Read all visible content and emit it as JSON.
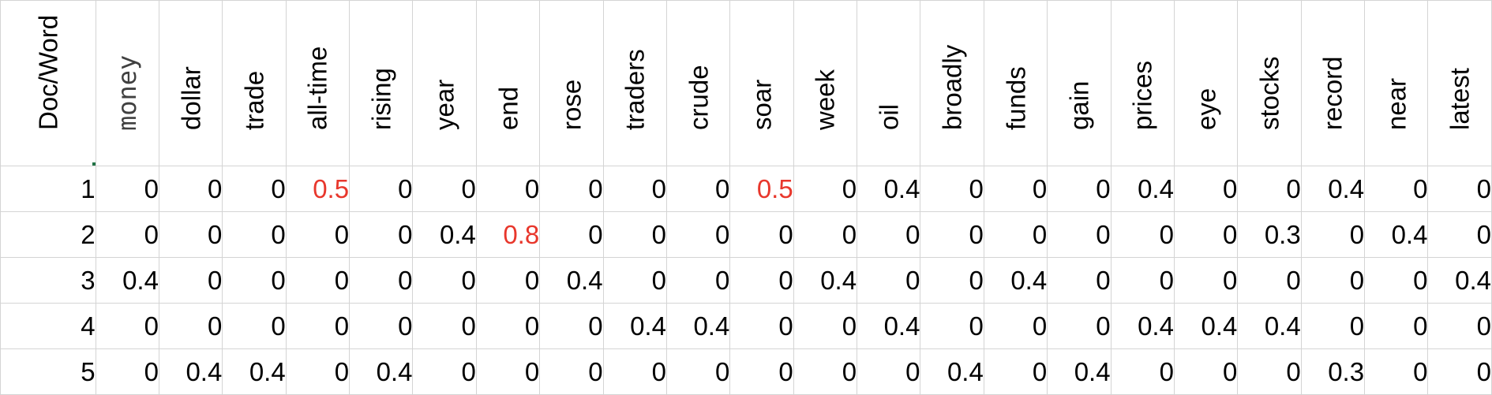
{
  "corner_label": "Doc/Word",
  "words": [
    "money",
    "dollar",
    "trade",
    "all-time",
    "rising",
    "year",
    "end",
    "rose",
    "traders",
    "crude",
    "soar",
    "week",
    "oil",
    "broadly",
    "funds",
    "gain",
    "prices",
    "eye",
    "stocks",
    "record",
    "near",
    "latest"
  ],
  "rows": [
    {
      "doc": "1",
      "values": [
        "0",
        "0",
        "0",
        "0.5",
        "0",
        "0",
        "0",
        "0",
        "0",
        "0",
        "0.5",
        "0",
        "0.4",
        "0",
        "0",
        "0",
        "0.4",
        "0",
        "0",
        "0.4",
        "0",
        "0"
      ]
    },
    {
      "doc": "2",
      "values": [
        "0",
        "0",
        "0",
        "0",
        "0",
        "0.4",
        "0.8",
        "0",
        "0",
        "0",
        "0",
        "0",
        "0",
        "0",
        "0",
        "0",
        "0",
        "0",
        "0.3",
        "0",
        "0.4",
        "0"
      ]
    },
    {
      "doc": "3",
      "values": [
        "0.4",
        "0",
        "0",
        "0",
        "0",
        "0",
        "0",
        "0.4",
        "0",
        "0",
        "0",
        "0.4",
        "0",
        "0",
        "0.4",
        "0",
        "0",
        "0",
        "0",
        "0",
        "0",
        "0.4"
      ]
    },
    {
      "doc": "4",
      "values": [
        "0",
        "0",
        "0",
        "0",
        "0",
        "0",
        "0",
        "0",
        "0.4",
        "0.4",
        "0",
        "0",
        "0.4",
        "0",
        "0",
        "0",
        "0.4",
        "0.4",
        "0.4",
        "0",
        "0",
        "0"
      ]
    },
    {
      "doc": "5",
      "values": [
        "0",
        "0.4",
        "0.4",
        "0",
        "0.4",
        "0",
        "0",
        "0",
        "0",
        "0",
        "0",
        "0",
        "0",
        "0.4",
        "0",
        "0.4",
        "0",
        "0",
        "0",
        "0.3",
        "0",
        "0"
      ]
    }
  ],
  "highlights": [
    {
      "row": 0,
      "col": 3
    },
    {
      "row": 0,
      "col": 10
    },
    {
      "row": 1,
      "col": 6
    }
  ],
  "colors": {
    "highlight_text": "#e8372c",
    "selection_border": "#217346",
    "gridline": "#d4d4d4"
  }
}
